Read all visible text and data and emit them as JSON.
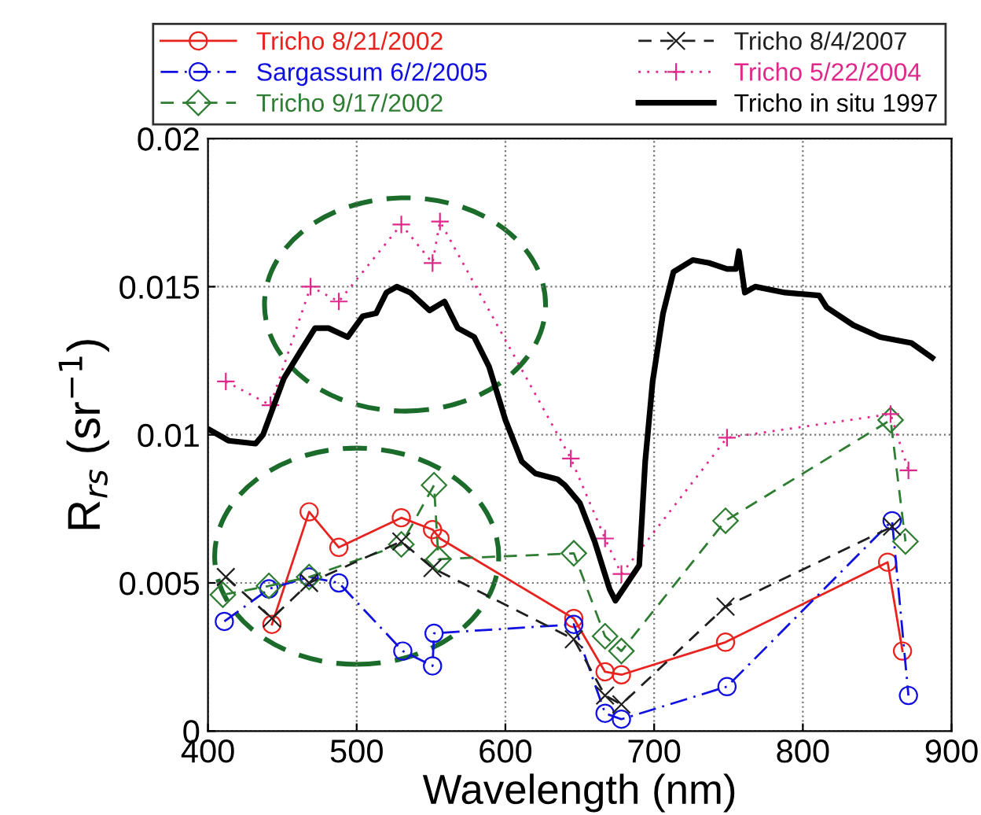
{
  "chart_data": {
    "type": "line",
    "xlabel": "Wavelength (nm)",
    "ylabel": "R$_{rs}$ (sr$^{−1}$)",
    "xlim": [
      400,
      900
    ],
    "ylim": [
      0,
      0.02
    ],
    "xticks": [
      400,
      500,
      600,
      700,
      800,
      900
    ],
    "yticks": [
      0,
      0.005,
      0.01,
      0.015,
      0.02
    ],
    "grid": true,
    "legend": "top",
    "series": [
      {
        "name": "Tricho 8/21/2002",
        "color": "#e8231f",
        "marker": "circle",
        "line_style": "solid",
        "x": [
          443,
          468,
          488,
          530,
          551,
          556,
          646,
          667,
          678,
          748,
          857,
          867
        ],
        "values": [
          0.0036,
          0.0074,
          0.0062,
          0.0072,
          0.0068,
          0.0065,
          0.0038,
          0.002,
          0.0019,
          0.003,
          0.0057,
          0.0027
        ]
      },
      {
        "name": "Sargassum 6/2/2005",
        "color": "#1010e0",
        "marker": "circle",
        "line_style": "dashdot",
        "x": [
          411,
          441,
          468,
          488,
          531,
          551,
          552,
          646,
          667,
          678,
          749,
          860,
          871
        ],
        "values": [
          0.0037,
          0.0048,
          0.0052,
          0.005,
          0.0027,
          0.0022,
          0.0033,
          0.0036,
          0.0006,
          0.0004,
          0.0015,
          0.0071,
          0.0012
        ]
      },
      {
        "name": "Tricho 9/17/2002",
        "color": "#2e7d32",
        "marker": "diamond",
        "line_style": "dashed",
        "x": [
          410,
          441,
          468,
          530,
          552,
          555,
          646,
          667,
          678,
          748,
          859,
          869
        ],
        "values": [
          0.0046,
          0.0049,
          0.0052,
          0.0063,
          0.0083,
          0.0058,
          0.006,
          0.0032,
          0.0027,
          0.0071,
          0.0105,
          0.0064
        ]
      },
      {
        "name": "Tricho 8/4/2007",
        "color": "#202020",
        "marker": "cross",
        "line_style": "dashed",
        "x": [
          412,
          443,
          468,
          530,
          551,
          646,
          667,
          678,
          748,
          860
        ],
        "values": [
          0.0052,
          0.0038,
          0.005,
          0.0064,
          0.0055,
          0.0031,
          0.0012,
          0.0009,
          0.0042,
          0.0069
        ]
      },
      {
        "name": "Tricho 5/22/2004",
        "color": "#e0288c",
        "marker": "plus",
        "line_style": "dotted",
        "x": [
          412,
          442,
          469,
          488,
          530,
          551,
          556,
          644,
          667,
          678,
          749,
          859,
          871
        ],
        "values": [
          0.0118,
          0.011,
          0.015,
          0.0145,
          0.0171,
          0.0158,
          0.0172,
          0.0092,
          0.0065,
          0.0053,
          0.0099,
          0.0107,
          0.0088
        ]
      },
      {
        "name": "Tricho in situ 1997",
        "color": "#000000",
        "marker": "none",
        "line_style": "solid",
        "x": [
          400,
          414,
          432,
          437,
          451,
          462,
          472,
          481,
          494,
          504,
          513,
          520,
          527,
          536,
          549,
          559,
          568,
          579,
          589,
          600,
          611,
          620,
          635,
          640,
          650,
          660,
          670,
          674,
          690,
          694,
          699,
          706,
          713,
          726,
          737,
          749,
          755,
          757,
          761,
          768,
          788,
          811,
          816,
          834,
          852,
          873,
          887
        ],
        "values": [
          0.0102,
          0.0098,
          0.0097,
          0.01,
          0.0119,
          0.0128,
          0.0136,
          0.0136,
          0.0133,
          0.014,
          0.0141,
          0.0148,
          0.015,
          0.0148,
          0.0142,
          0.0145,
          0.0136,
          0.0133,
          0.0123,
          0.0105,
          0.0091,
          0.0087,
          0.0085,
          0.0083,
          0.0077,
          0.0064,
          0.0048,
          0.0044,
          0.0056,
          0.0091,
          0.0118,
          0.0141,
          0.0155,
          0.0159,
          0.0158,
          0.0156,
          0.0156,
          0.0162,
          0.0148,
          0.015,
          0.0148,
          0.0147,
          0.0143,
          0.0137,
          0.0133,
          0.0131,
          0.0126
        ]
      }
    ]
  }
}
